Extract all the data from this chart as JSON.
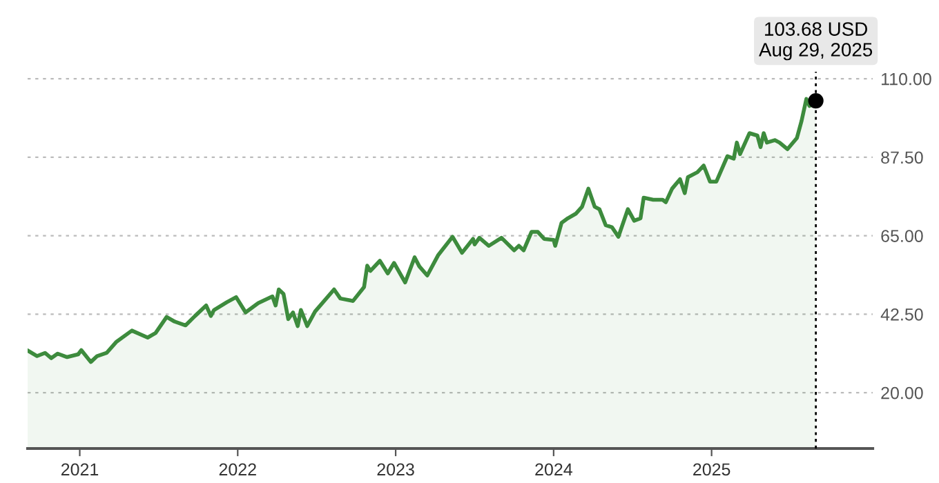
{
  "chart_data": {
    "type": "area",
    "color": "#3d8b3d",
    "x": [
      2020.67,
      2020.73,
      2020.78,
      2020.82,
      2020.86,
      2020.92,
      2020.99,
      2021.01,
      2021.07,
      2021.11,
      2021.17,
      2021.23,
      2021.33,
      2021.43,
      2021.48,
      2021.55,
      2021.6,
      2021.67,
      2021.73,
      2021.8,
      2021.83,
      2021.85,
      2021.93,
      2021.99,
      2022.05,
      2022.13,
      2022.22,
      2022.24,
      2022.26,
      2022.29,
      2022.32,
      2022.35,
      2022.38,
      2022.4,
      2022.44,
      2022.49,
      2022.61,
      2022.65,
      2022.73,
      2022.8,
      2022.82,
      2022.84,
      2022.9,
      2022.95,
      2022.99,
      2023.06,
      2023.12,
      2023.15,
      2023.2,
      2023.27,
      2023.36,
      2023.42,
      2023.49,
      2023.5,
      2023.53,
      2023.59,
      2023.67,
      2023.75,
      2023.78,
      2023.81,
      2023.86,
      2023.9,
      2023.94,
      2024.0,
      2024.01,
      2024.05,
      2024.09,
      2024.14,
      2024.18,
      2024.22,
      2024.26,
      2024.29,
      2024.33,
      2024.37,
      2024.41,
      2024.47,
      2024.51,
      2024.55,
      2024.57,
      2024.63,
      2024.69,
      2024.71,
      2024.75,
      2024.8,
      2024.83,
      2024.85,
      2024.91,
      2024.95,
      2024.99,
      2025.03,
      2025.1,
      2025.14,
      2025.16,
      2025.18,
      2025.24,
      2025.29,
      2025.31,
      2025.33,
      2025.35,
      2025.4,
      2025.43,
      2025.48,
      2025.54,
      2025.57,
      2025.6,
      2025.62,
      2025.66
    ],
    "values": [
      32.1,
      30.5,
      31.4,
      29.9,
      31.2,
      30.2,
      31.0,
      32.2,
      28.8,
      30.5,
      31.4,
      34.5,
      37.8,
      35.8,
      37.1,
      41.7,
      40.4,
      39.3,
      42.0,
      45.0,
      42.0,
      43.7,
      45.9,
      47.4,
      43.0,
      45.7,
      47.6,
      45.0,
      49.6,
      48.3,
      41.1,
      43.0,
      39.1,
      43.7,
      39.1,
      43.3,
      49.6,
      47.0,
      46.3,
      50.3,
      56.4,
      54.9,
      57.8,
      54.2,
      57.2,
      51.6,
      58.8,
      56.2,
      53.6,
      59.5,
      64.7,
      60.1,
      64.1,
      62.5,
      64.4,
      62.1,
      64.4,
      60.8,
      62.1,
      60.8,
      66.1,
      66.1,
      64.1,
      63.8,
      62.1,
      68.7,
      70.0,
      71.3,
      73.3,
      78.5,
      73.3,
      72.6,
      68.0,
      67.4,
      64.7,
      72.6,
      69.3,
      70.0,
      75.9,
      75.3,
      75.3,
      74.6,
      78.5,
      81.2,
      77.2,
      81.8,
      83.2,
      85.1,
      80.5,
      80.5,
      87.8,
      87.1,
      91.7,
      88.4,
      94.4,
      93.7,
      90.4,
      94.4,
      91.7,
      92.4,
      91.7,
      89.8,
      93.0,
      98.0,
      104.2,
      102.2,
      103.68
    ],
    "xlim": [
      2020.67,
      2026.02
    ],
    "xticks": [
      2021,
      2022,
      2023,
      2024,
      2025
    ],
    "ylim": [
      4,
      112
    ],
    "yticks": [
      {
        "value": 20,
        "label": "20.00"
      },
      {
        "value": 42.5,
        "label": "42.50"
      },
      {
        "value": 65,
        "label": "65.00"
      },
      {
        "value": 87.5,
        "label": "87.50"
      },
      {
        "value": 110,
        "label": "110.00"
      }
    ],
    "grid": "y",
    "ref_lines": [
      {
        "axis": "x",
        "value": 2025.66,
        "color": "#000000",
        "line_style": "dotted"
      }
    ],
    "annotations": [
      {
        "text": "103.68 USD\nAug 29, 2025",
        "x": 2025.66,
        "y": 103.68
      }
    ]
  }
}
